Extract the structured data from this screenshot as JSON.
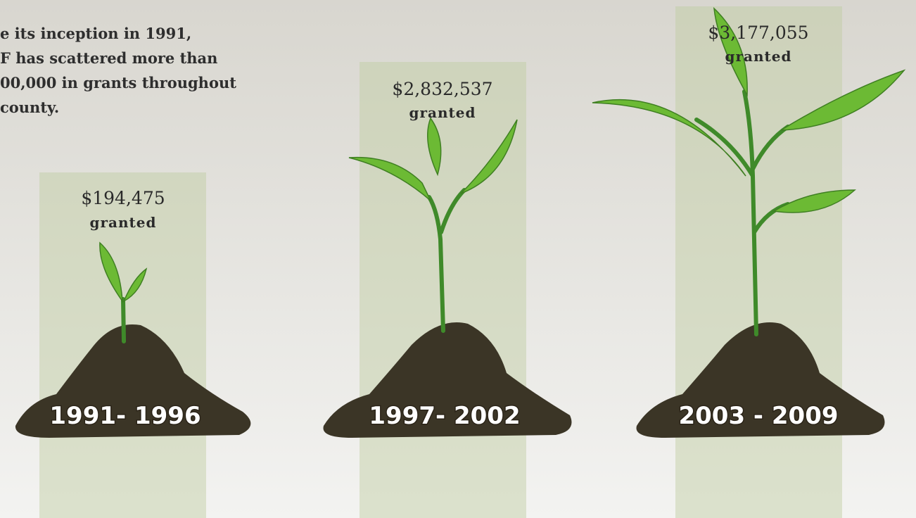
{
  "intro": {
    "lines": [
      "e its inception in 1991,",
      "F has scattered more than",
      "00,000 in grants throughout",
      "county."
    ]
  },
  "stages": [
    {
      "amount": "$194,475",
      "note": "granted",
      "period": "1991- 1996"
    },
    {
      "amount": "$2,832,537",
      "note": "granted",
      "period": "1997- 2002"
    },
    {
      "amount": "$3,177,055",
      "note": "granted",
      "period": "2003 - 2009"
    }
  ]
}
